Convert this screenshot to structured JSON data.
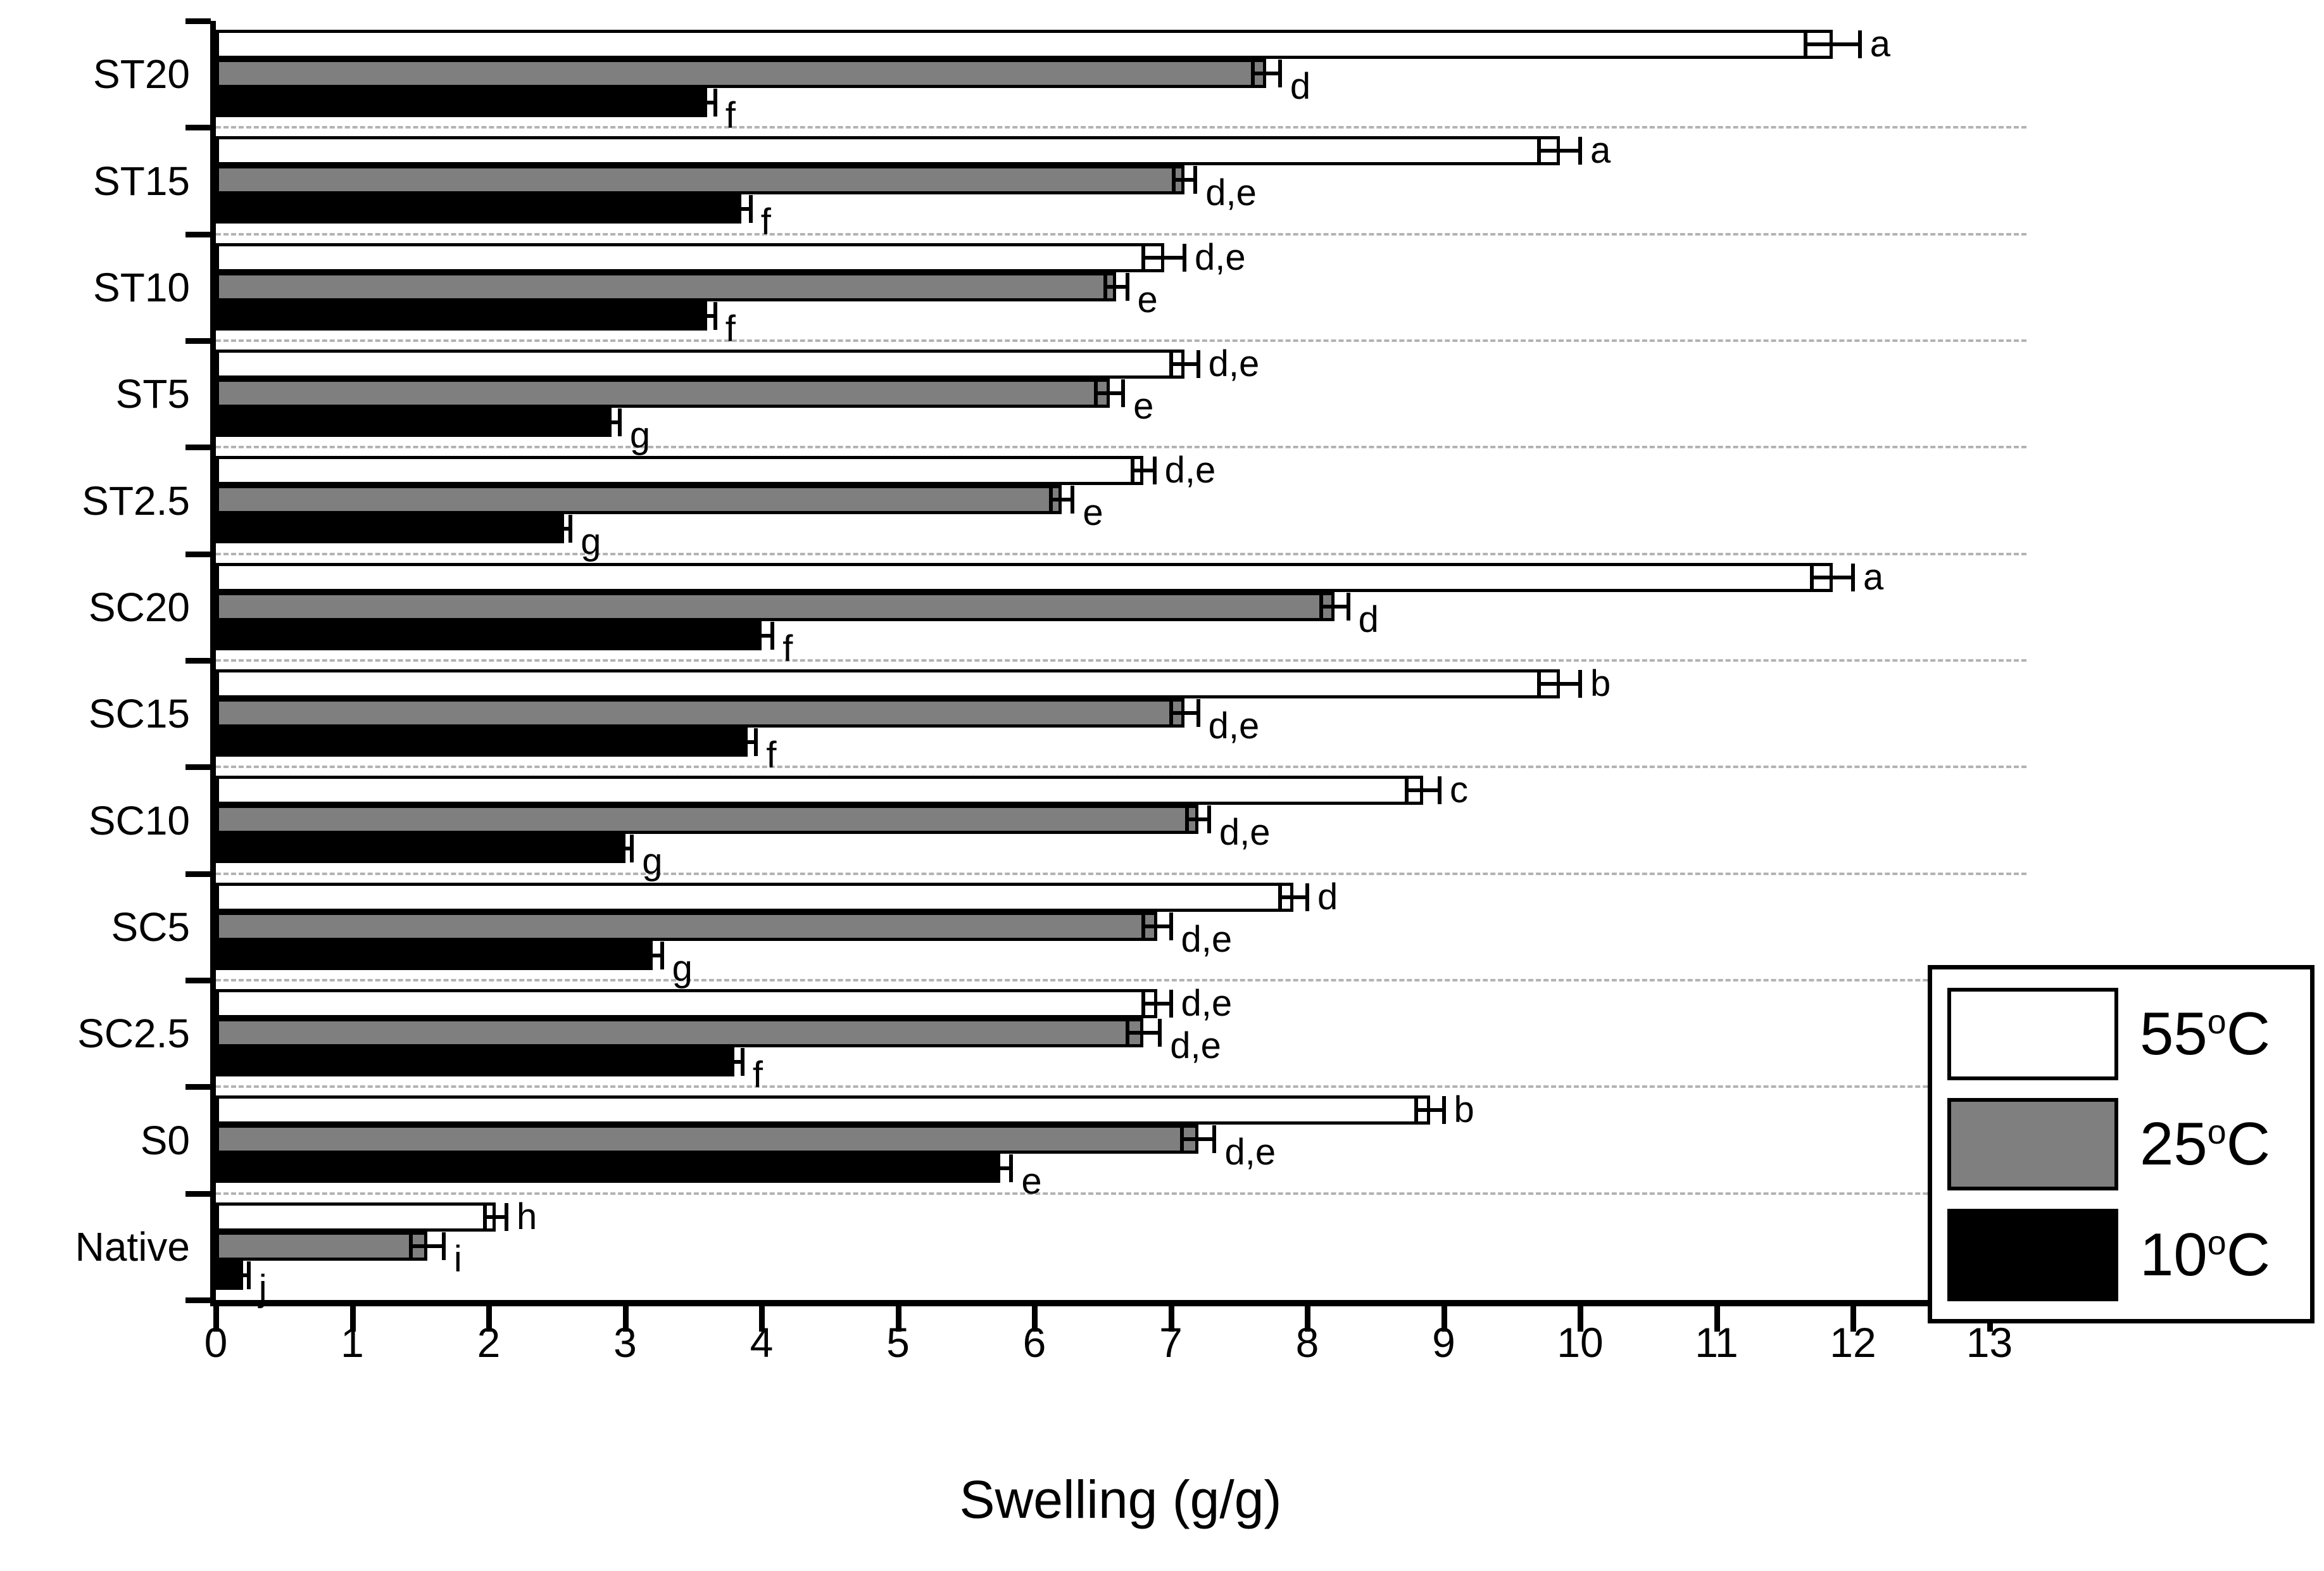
{
  "chart_data": {
    "type": "bar",
    "orientation": "horizontal",
    "title": "",
    "xlabel": "Swelling (g/g)",
    "ylabel": "",
    "xlim": [
      0,
      13.25
    ],
    "x_ticks": [
      0,
      1,
      2,
      3,
      4,
      5,
      6,
      7,
      8,
      9,
      10,
      11,
      12,
      13
    ],
    "grid": "dashed-horizontal-between-groups",
    "legend_position": "lower-right",
    "categories": [
      "ST20",
      "ST15",
      "ST10",
      "ST5",
      "ST2.5",
      "SC20",
      "SC15",
      "SC10",
      "SC5",
      "SC2.5",
      "S0",
      "Native"
    ],
    "series": [
      {
        "name": "55°C",
        "color": "#ffffff",
        "values": [
          11.85,
          9.85,
          6.95,
          7.1,
          6.8,
          11.85,
          9.85,
          8.85,
          7.9,
          6.9,
          8.9,
          2.05
        ],
        "errors": [
          0.2,
          0.15,
          0.15,
          0.1,
          0.08,
          0.15,
          0.15,
          0.12,
          0.1,
          0.1,
          0.1,
          0.08
        ],
        "sig_labels": [
          "a",
          "a",
          "d,e",
          "d,e",
          "d,e",
          "a",
          "b",
          "c",
          "d",
          "d,e",
          "b",
          "h"
        ]
      },
      {
        "name": "25°C",
        "color": "#7f7f7f",
        "values": [
          7.7,
          7.1,
          6.6,
          6.55,
          6.2,
          8.2,
          7.1,
          7.2,
          6.9,
          6.8,
          7.2,
          1.55
        ],
        "errors": [
          0.1,
          0.08,
          0.08,
          0.1,
          0.08,
          0.1,
          0.1,
          0.08,
          0.1,
          0.12,
          0.12,
          0.12
        ],
        "sig_labels": [
          "d",
          "d,e",
          "e",
          "e",
          "e",
          "d",
          "d,e",
          "d,e",
          "d,e",
          "d,e",
          "d,e",
          "i"
        ]
      },
      {
        "name": "10°C",
        "color": "#000000",
        "values": [
          3.6,
          3.85,
          3.6,
          2.9,
          2.55,
          4.0,
          3.9,
          3.0,
          3.2,
          3.8,
          5.75,
          0.2
        ],
        "errors": [
          0.06,
          0.07,
          0.06,
          0.06,
          0.05,
          0.08,
          0.06,
          0.05,
          0.07,
          0.06,
          0.08,
          0.04
        ],
        "sig_labels": [
          "f",
          "f",
          "f",
          "g",
          "g",
          "f",
          "f",
          "g",
          "g",
          "f",
          "e",
          "j"
        ]
      }
    ]
  },
  "legend": {
    "items": [
      {
        "value": "55",
        "degree": "o",
        "unit": "C",
        "color": "#ffffff"
      },
      {
        "value": "25",
        "degree": "o",
        "unit": "C",
        "color": "#7f7f7f"
      },
      {
        "value": "10",
        "degree": "o",
        "unit": "C",
        "color": "#000000"
      }
    ]
  }
}
